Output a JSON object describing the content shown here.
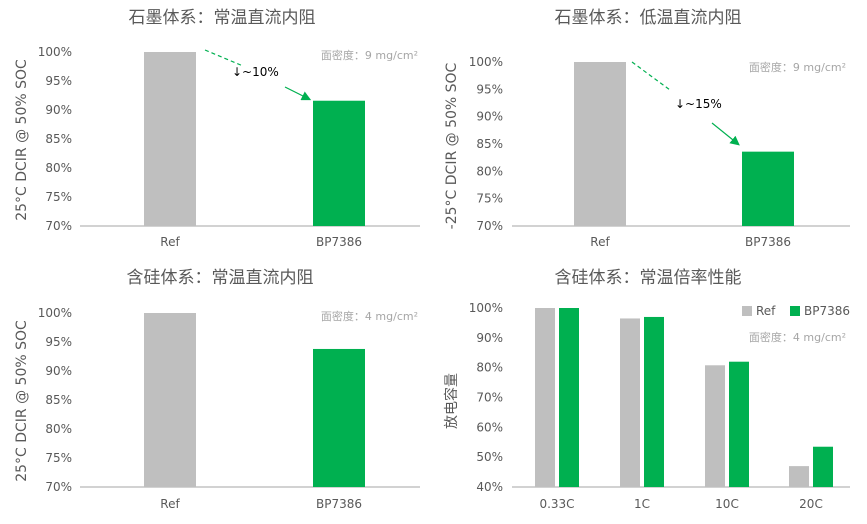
{
  "colors": {
    "ref": "#BFBFBF",
    "bp": "#00B050",
    "axis": "#A6A6A6",
    "text": "#595959",
    "note": "#A6A6A6"
  },
  "chart_data": [
    {
      "type": "bar",
      "title": "石墨体系：常温直流内阻",
      "ylabel": "25°C  DCIR @ 50% SOC",
      "note": "面密度：9 mg/cm²",
      "categories": [
        "Ref",
        "BP7386"
      ],
      "values": [
        100,
        91.6
      ],
      "ylim": [
        70,
        100
      ],
      "yticks": [
        "70%",
        "75%",
        "80%",
        "85%",
        "90%",
        "95%",
        "100%"
      ],
      "annotation": "↓~10%",
      "grid": false
    },
    {
      "type": "bar",
      "title": "石墨体系：低温直流内阻",
      "ylabel": "-25°C  DCIR @ 50% SOC",
      "note": "面密度：9 mg/cm²",
      "categories": [
        "Ref",
        "BP7386"
      ],
      "values": [
        100,
        83.6
      ],
      "ylim": [
        70,
        100
      ],
      "yticks": [
        "70%",
        "75%",
        "80%",
        "85%",
        "90%",
        "95%",
        "100%"
      ],
      "annotation": "↓~15%",
      "grid": false
    },
    {
      "type": "bar",
      "title": "含硅体系：常温直流内阻",
      "ylabel": "25°C DCIR @ 50% SOC",
      "note": "面密度：4 mg/cm²",
      "categories": [
        "Ref",
        "BP7386"
      ],
      "values": [
        100,
        93.8
      ],
      "ylim": [
        70,
        100
      ],
      "yticks": [
        "70%",
        "75%",
        "80%",
        "85%",
        "90%",
        "95%",
        "100%"
      ],
      "grid": false
    },
    {
      "type": "bar",
      "title": "含硅体系：常温倍率性能",
      "ylabel": "放电容量",
      "note": "面密度：4 mg/cm²",
      "categories": [
        "0.33C",
        "1C",
        "10C",
        "20C"
      ],
      "series": [
        {
          "name": "Ref",
          "values": [
            100,
            96.5,
            80.8,
            47
          ]
        },
        {
          "name": "BP7386",
          "values": [
            100,
            97,
            82,
            53.5
          ]
        }
      ],
      "ylim": [
        40,
        100
      ],
      "yticks": [
        "40%",
        "50%",
        "60%",
        "70%",
        "80%",
        "90%",
        "100%"
      ],
      "legend": "top-right",
      "grid": false
    }
  ]
}
